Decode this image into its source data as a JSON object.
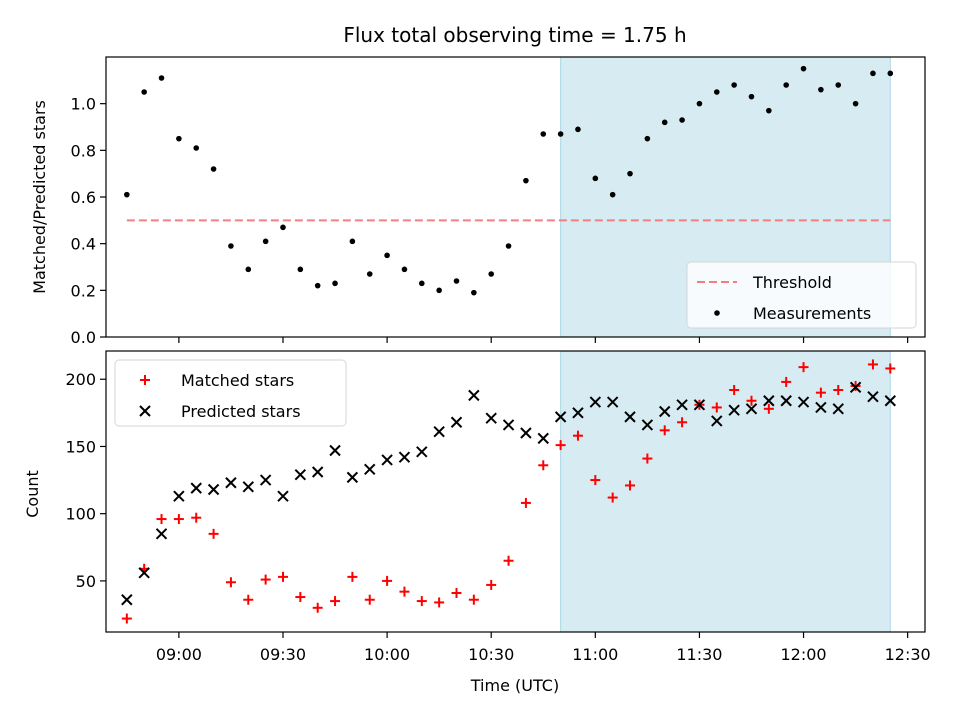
{
  "chart_data": [
    {
      "type": "scatter",
      "title": "Flux total observing time = 1.75 h",
      "xlabel": "",
      "ylabel": "Matched/Predicted stars",
      "ylim": [
        0,
        1.2
      ],
      "yticks": [
        0.0,
        0.2,
        0.4,
        0.6,
        0.8,
        1.0
      ],
      "ytick_labels": [
        "0.0",
        "0.2",
        "0.4",
        "0.6",
        "0.8",
        "1.0"
      ],
      "xlim": [
        "08:39",
        "12:35"
      ],
      "highlight_span": {
        "start": "10:50",
        "end": "12:25",
        "color": "#add8e6"
      },
      "threshold": {
        "name": "Threshold",
        "value": 0.5,
        "x_start": "08:45",
        "x_end": "12:25",
        "color": "#f08080"
      },
      "legend_position": "lower right",
      "series": [
        {
          "name": "Measurements",
          "marker": "dot",
          "color": "#000000",
          "x": [
            "08:45",
            "08:50",
            "08:55",
            "09:00",
            "09:05",
            "09:10",
            "09:15",
            "09:20",
            "09:25",
            "09:30",
            "09:35",
            "09:40",
            "09:45",
            "09:50",
            "09:55",
            "10:00",
            "10:05",
            "10:10",
            "10:15",
            "10:20",
            "10:25",
            "10:30",
            "10:35",
            "10:40",
            "10:45",
            "10:50",
            "10:55",
            "11:00",
            "11:05",
            "11:10",
            "11:15",
            "11:20",
            "11:25",
            "11:30",
            "11:35",
            "11:40",
            "11:45",
            "11:50",
            "11:55",
            "12:00",
            "12:05",
            "12:10",
            "12:15",
            "12:20",
            "12:25"
          ],
          "y": [
            0.61,
            1.05,
            1.11,
            0.85,
            0.81,
            0.72,
            0.39,
            0.29,
            0.41,
            0.47,
            0.29,
            0.22,
            0.23,
            0.41,
            0.27,
            0.35,
            0.29,
            0.23,
            0.2,
            0.24,
            0.19,
            0.27,
            0.39,
            0.67,
            0.87,
            0.87,
            0.89,
            0.68,
            0.61,
            0.7,
            0.85,
            0.92,
            0.93,
            1.0,
            1.05,
            1.08,
            1.03,
            0.97,
            1.08,
            1.15,
            1.06,
            1.08,
            1.0,
            1.13,
            1.13
          ]
        }
      ]
    },
    {
      "type": "scatter",
      "title": "",
      "xlabel": "Time (UTC)",
      "ylabel": "Count",
      "ylim": [
        12,
        221
      ],
      "yticks": [
        50,
        100,
        150,
        200
      ],
      "ytick_labels": [
        "50",
        "100",
        "150",
        "200"
      ],
      "xlim": [
        "08:39",
        "12:35"
      ],
      "xticks": [
        "09:00",
        "09:30",
        "10:00",
        "10:30",
        "11:00",
        "11:30",
        "12:00",
        "12:30"
      ],
      "xtick_labels": [
        "09:00",
        "09:30",
        "10:00",
        "10:30",
        "11:00",
        "11:30",
        "12:00",
        "12:30"
      ],
      "highlight_span": {
        "start": "10:50",
        "end": "12:25",
        "color": "#add8e6"
      },
      "legend_position": "upper left",
      "series": [
        {
          "name": "Matched stars",
          "marker": "plus",
          "color": "#ff0000",
          "x": [
            "08:45",
            "08:50",
            "08:55",
            "09:00",
            "09:05",
            "09:10",
            "09:15",
            "09:20",
            "09:25",
            "09:30",
            "09:35",
            "09:40",
            "09:45",
            "09:50",
            "09:55",
            "10:00",
            "10:05",
            "10:10",
            "10:15",
            "10:20",
            "10:25",
            "10:30",
            "10:35",
            "10:40",
            "10:45",
            "10:50",
            "10:55",
            "11:00",
            "11:05",
            "11:10",
            "11:15",
            "11:20",
            "11:25",
            "11:30",
            "11:35",
            "11:40",
            "11:45",
            "11:50",
            "11:55",
            "12:00",
            "12:05",
            "12:10",
            "12:15",
            "12:20",
            "12:25"
          ],
          "y": [
            22,
            59,
            96,
            96,
            97,
            85,
            49,
            36,
            51,
            53,
            38,
            30,
            35,
            53,
            36,
            50,
            42,
            35,
            34,
            41,
            36,
            47,
            65,
            108,
            136,
            151,
            158,
            125,
            112,
            121,
            141,
            162,
            168,
            181,
            179,
            192,
            184,
            178,
            198,
            209,
            190,
            192,
            195,
            211,
            208
          ]
        },
        {
          "name": "Predicted stars",
          "marker": "x",
          "color": "#000000",
          "x": [
            "08:45",
            "08:50",
            "08:55",
            "09:00",
            "09:05",
            "09:10",
            "09:15",
            "09:20",
            "09:25",
            "09:30",
            "09:35",
            "09:40",
            "09:45",
            "09:50",
            "09:55",
            "10:00",
            "10:05",
            "10:10",
            "10:15",
            "10:20",
            "10:25",
            "10:30",
            "10:35",
            "10:40",
            "10:45",
            "10:50",
            "10:55",
            "11:00",
            "11:05",
            "11:10",
            "11:15",
            "11:20",
            "11:25",
            "11:30",
            "11:35",
            "11:40",
            "11:45",
            "11:50",
            "11:55",
            "12:00",
            "12:05",
            "12:10",
            "12:15",
            "12:20",
            "12:25"
          ],
          "y": [
            36,
            56,
            85,
            113,
            119,
            118,
            123,
            120,
            125,
            113,
            129,
            131,
            147,
            127,
            133,
            140,
            142,
            146,
            161,
            168,
            188,
            171,
            166,
            160,
            156,
            172,
            175,
            183,
            183,
            172,
            166,
            176,
            181,
            181,
            169,
            177,
            178,
            184,
            184,
            183,
            179,
            178,
            194,
            187,
            184
          ]
        }
      ]
    }
  ]
}
